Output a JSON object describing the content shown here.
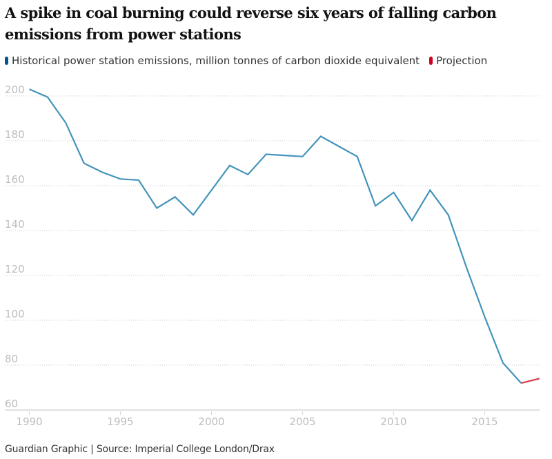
{
  "chart_data": {
    "type": "line",
    "title": "A spike in coal burning could reverse six years of falling carbon emissions from power stations",
    "xlabel": "",
    "ylabel": "",
    "xlim": [
      1990,
      2018
    ],
    "ylim": [
      60,
      205
    ],
    "yticks": [
      60,
      80,
      100,
      120,
      140,
      160,
      180,
      200
    ],
    "xticks": [
      1990,
      1995,
      2000,
      2005,
      2010,
      2015
    ],
    "grid": true,
    "legend_position": "top-left",
    "series": [
      {
        "name": "Historical power station emissions, million tonnes of carbon dioxide equivalent",
        "color": "#4393bb",
        "legend_color": "#005689",
        "x": [
          1990,
          1991,
          1992,
          1993,
          1994,
          1995,
          1996,
          1997,
          1998,
          1999,
          2000,
          2001,
          2002,
          2003,
          2004,
          2005,
          2006,
          2007,
          2008,
          2009,
          2010,
          2011,
          2012,
          2013,
          2014,
          2015,
          2016,
          2017
        ],
        "values": [
          203,
          199.5,
          188,
          170,
          166,
          163,
          162.5,
          150,
          155,
          147,
          158,
          169,
          165,
          174,
          173.5,
          173,
          182,
          177.5,
          173,
          151,
          157,
          144.5,
          158,
          147,
          123.5,
          101.5,
          81,
          72
        ]
      },
      {
        "name": "Projection",
        "color": "#d73c4c",
        "legend_color": "#d0021b",
        "x": [
          2017,
          2018
        ],
        "values": [
          72,
          74
        ]
      }
    ]
  },
  "footer": "Guardian Graphic | Source: Imperial College London/Drax"
}
